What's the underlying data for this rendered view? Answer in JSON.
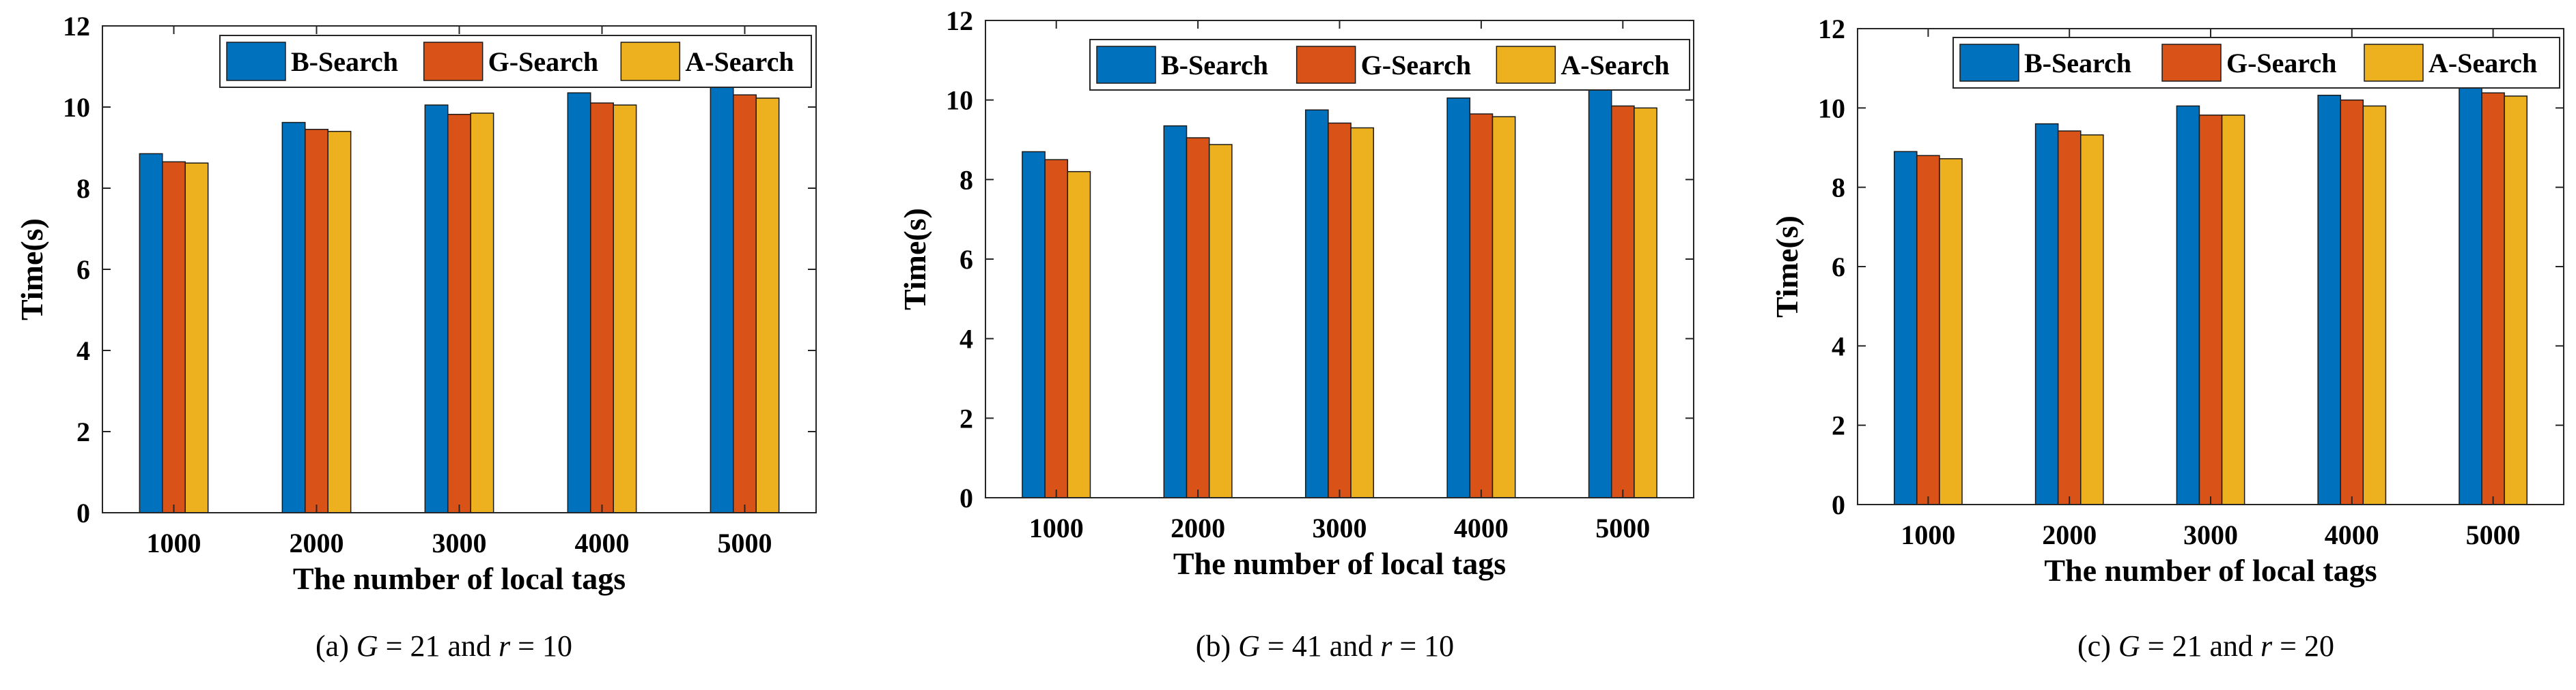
{
  "chart_data": [
    {
      "type": "bar",
      "categories": [
        "1000",
        "2000",
        "3000",
        "4000",
        "5000"
      ],
      "series": [
        {
          "name": "B-Search",
          "values": [
            8.85,
            9.62,
            10.05,
            10.35,
            10.6
          ]
        },
        {
          "name": "G-Search",
          "values": [
            8.65,
            9.45,
            9.82,
            10.1,
            10.3
          ]
        },
        {
          "name": "A-Search",
          "values": [
            8.62,
            9.4,
            9.85,
            10.05,
            10.22
          ]
        }
      ],
      "xlabel": "The number of local tags",
      "ylabel": "Time(s)",
      "ylim": [
        0,
        12
      ],
      "yticks": [
        "0",
        "2",
        "4",
        "6",
        "8",
        "10",
        "12"
      ],
      "legend_position": "top-right",
      "caption": {
        "prefix": "(a) ",
        "var1": "G",
        "mid": " = 21 and ",
        "var2": "r",
        "suffix": " = 10"
      }
    },
    {
      "type": "bar",
      "categories": [
        "1000",
        "2000",
        "3000",
        "4000",
        "5000"
      ],
      "series": [
        {
          "name": "B-Search",
          "values": [
            8.7,
            9.35,
            9.75,
            10.05,
            10.25
          ]
        },
        {
          "name": "G-Search",
          "values": [
            8.5,
            9.05,
            9.42,
            9.65,
            9.85
          ]
        },
        {
          "name": "A-Search",
          "values": [
            8.2,
            8.88,
            9.3,
            9.58,
            9.8
          ]
        }
      ],
      "xlabel": "The number of local tags",
      "ylabel": "Time(s)",
      "ylim": [
        0,
        12
      ],
      "yticks": [
        "0",
        "2",
        "4",
        "6",
        "8",
        "10",
        "12"
      ],
      "legend_position": "top-right",
      "caption": {
        "prefix": "(b) ",
        "var1": "G",
        "mid": " = 41 and ",
        "var2": "r",
        "suffix": " = 10"
      }
    },
    {
      "type": "bar",
      "categories": [
        "1000",
        "2000",
        "3000",
        "4000",
        "5000"
      ],
      "series": [
        {
          "name": "B-Search",
          "values": [
            8.9,
            9.6,
            10.05,
            10.32,
            10.6
          ]
        },
        {
          "name": "G-Search",
          "values": [
            8.8,
            9.42,
            9.82,
            10.2,
            10.38
          ]
        },
        {
          "name": "A-Search",
          "values": [
            8.72,
            9.32,
            9.82,
            10.05,
            10.3
          ]
        }
      ],
      "xlabel": "The number of local tags",
      "ylabel": "Time(s)",
      "ylim": [
        0,
        12
      ],
      "yticks": [
        "0",
        "2",
        "4",
        "6",
        "8",
        "10",
        "12"
      ],
      "legend_position": "top-right",
      "caption": {
        "prefix": "(c) ",
        "var1": "G",
        "mid": " = 21 and ",
        "var2": "r",
        "suffix": " = 20"
      }
    }
  ],
  "colors": {
    "series": [
      "#0072BD",
      "#D95319",
      "#EDB120"
    ],
    "axis": "#000000",
    "background": "#ffffff"
  }
}
